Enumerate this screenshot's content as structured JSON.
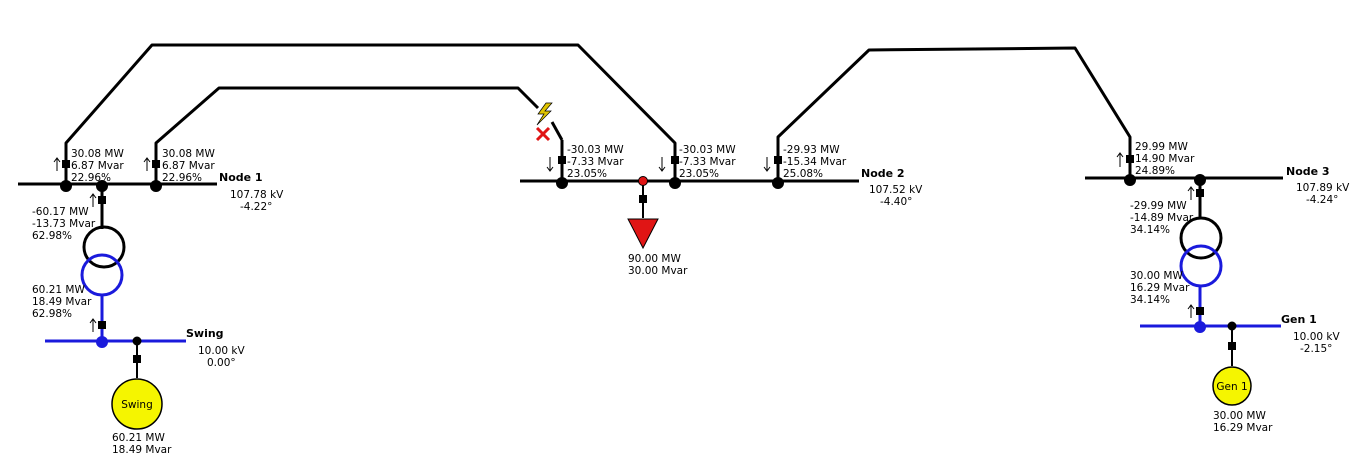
{
  "colors": {
    "hv": "#000000",
    "lv": "#1a1adc",
    "load": "#e01515",
    "generator": "#f5f500",
    "fault": "#e0c400"
  },
  "buses": {
    "node1": {
      "name": "Node 1",
      "voltage": "107.78 kV",
      "angle": "-4.22°"
    },
    "node2": {
      "name": "Node 2",
      "voltage": "107.52 kV",
      "angle": "-4.40°"
    },
    "node3": {
      "name": "Node 3",
      "voltage": "107.89 kV",
      "angle": "-4.24°"
    },
    "swing": {
      "name": "Swing",
      "voltage": "10.00 kV",
      "angle": "0.00°"
    },
    "gen1": {
      "name": "Gen 1",
      "voltage": "10.00 kV",
      "angle": "-2.15°"
    }
  },
  "flows": {
    "n1_outer": {
      "mw": "30.08 MW",
      "mvar": "6.87 Mvar",
      "loading": "22.96%"
    },
    "n1_inner": {
      "mw": "30.08 MW",
      "mvar": "6.87 Mvar",
      "loading": "22.96%"
    },
    "n2_inner": {
      "mw": "-30.03 MW",
      "mvar": "-7.33 Mvar",
      "loading": "23.05%"
    },
    "n2_outer": {
      "mw": "-30.03 MW",
      "mvar": "-7.33 Mvar",
      "loading": "23.05%"
    },
    "n2_right": {
      "mw": "-29.93 MW",
      "mvar": "-15.34 Mvar",
      "loading": "25.08%"
    },
    "n3_left": {
      "mw": "29.99 MW",
      "mvar": "14.90 Mvar",
      "loading": "24.89%"
    }
  },
  "transformers": {
    "t1": {
      "hv": {
        "mw": "-60.17 MW",
        "mvar": "-13.73 Mvar",
        "loading": "62.98%"
      },
      "lv": {
        "mw": "60.21 MW",
        "mvar": "18.49 Mvar",
        "loading": "62.98%"
      }
    },
    "t2": {
      "hv": {
        "mw": "-29.99 MW",
        "mvar": "-14.89 Mvar",
        "loading": "34.14%"
      },
      "lv": {
        "mw": "30.00 MW",
        "mvar": "16.29 Mvar",
        "loading": "34.14%"
      }
    }
  },
  "load": {
    "mw": "90.00 MW",
    "mvar": "30.00 Mvar"
  },
  "generators": {
    "swing": {
      "label": "Swing",
      "mw": "60.21 MW",
      "mvar": "18.49 Mvar"
    },
    "gen1": {
      "label": "Gen 1",
      "mw": "30.00 MW",
      "mvar": "16.29 Mvar"
    }
  },
  "icons": [
    "fault-lightning-icon",
    "switch-open-icon",
    "flow-arrow-icon"
  ]
}
